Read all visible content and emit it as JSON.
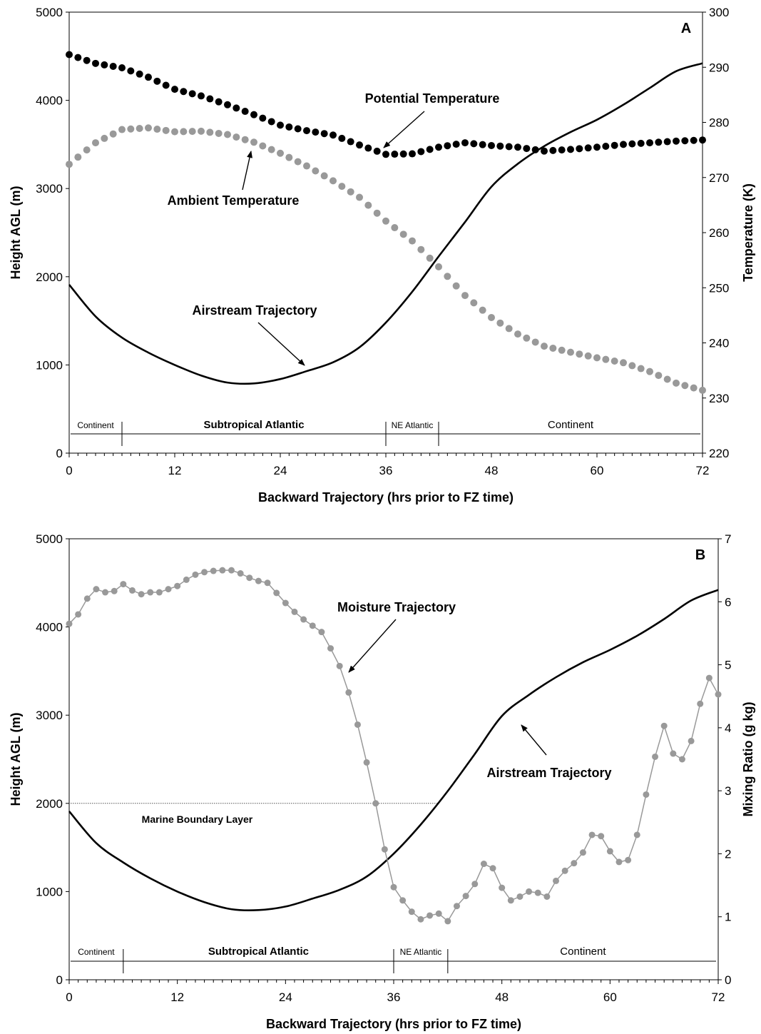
{
  "chart_data": [
    {
      "type": "line",
      "panel_label": "A",
      "xlabel": "Backward Trajectory (hrs prior to FZ time)",
      "ylabel": "Height AGL (m)",
      "y2label": "Temperature (K)",
      "xlim": [
        0,
        72
      ],
      "ylim": [
        0,
        5000
      ],
      "y2lim": [
        220,
        300
      ],
      "xticks": [
        "0",
        "12",
        "24",
        "36",
        "48",
        "60",
        "72"
      ],
      "yticks": [
        "0",
        "1000",
        "2000",
        "3000",
        "4000",
        "5000"
      ],
      "y2ticks": [
        "220",
        "230",
        "240",
        "250",
        "260",
        "270",
        "280",
        "290",
        "300"
      ],
      "series": [
        {
          "name": "Airstream Trajectory",
          "axis": "left",
          "style": "line",
          "x": [
            0,
            3,
            6,
            9,
            12,
            15,
            18,
            21,
            24,
            27,
            30,
            33,
            36,
            39,
            42,
            45,
            48,
            51,
            54,
            57,
            60,
            63,
            66,
            69,
            72
          ],
          "y": [
            1910,
            1550,
            1310,
            1140,
            1000,
            880,
            800,
            790,
            840,
            930,
            1030,
            1200,
            1480,
            1830,
            2230,
            2620,
            3020,
            3280,
            3480,
            3640,
            3780,
            3950,
            4140,
            4330,
            4420
          ]
        },
        {
          "name": "Potential Temperature",
          "axis": "right",
          "style": "dots",
          "color": "#000000",
          "x": [
            0,
            3,
            6,
            9,
            12,
            15,
            18,
            21,
            24,
            27,
            30,
            33,
            36,
            39,
            42,
            45,
            48,
            51,
            54,
            57,
            60,
            63,
            66,
            69,
            72
          ],
          "y": [
            292.3,
            290.7,
            289.9,
            288.2,
            286.0,
            284.8,
            283.2,
            281.4,
            279.5,
            278.5,
            277.7,
            275.9,
            274.2,
            274.3,
            275.5,
            276.3,
            275.8,
            275.5,
            274.8,
            275.1,
            275.5,
            276.0,
            276.3,
            276.6,
            276.8
          ]
        },
        {
          "name": "Ambient Temperature",
          "axis": "right",
          "style": "dots",
          "color": "#999999",
          "x": [
            0,
            3,
            6,
            9,
            12,
            15,
            18,
            21,
            24,
            27,
            30,
            33,
            36,
            39,
            42,
            45,
            48,
            51,
            54,
            57,
            60,
            63,
            66,
            69,
            72
          ],
          "y": [
            272.4,
            276.3,
            278.7,
            279.0,
            278.3,
            278.4,
            277.8,
            276.4,
            274.4,
            272.1,
            269.4,
            266.4,
            262.1,
            258.5,
            253.8,
            248.6,
            244.6,
            241.6,
            239.4,
            238.3,
            237.3,
            236.4,
            234.8,
            232.7,
            231.4
          ]
        }
      ],
      "annotations": [
        "Potential Temperature",
        "Ambient Temperature",
        "Airstream Trajectory"
      ],
      "regions": [
        {
          "label": "Continent",
          "from": 0,
          "to": 6,
          "bold": false,
          "small": true
        },
        {
          "label": "Subtropical Atlantic",
          "from": 6,
          "to": 36,
          "bold": true,
          "small": false
        },
        {
          "label": "NE Atlantic",
          "from": 36,
          "to": 42,
          "bold": false,
          "small": true
        },
        {
          "label": "Continent",
          "from": 42,
          "to": 72,
          "bold": false,
          "small": false
        }
      ]
    },
    {
      "type": "line",
      "panel_label": "B",
      "xlabel": "Backward Trajectory (hrs prior to FZ time)",
      "ylabel": "Height AGL (m)",
      "y2label": "Mixing Ratio (g kg)",
      "xlim": [
        0,
        72
      ],
      "ylim": [
        0,
        5000
      ],
      "y2lim": [
        0,
        7
      ],
      "xticks": [
        "0",
        "12",
        "24",
        "36",
        "48",
        "60",
        "72"
      ],
      "yticks": [
        "0",
        "1000",
        "2000",
        "3000",
        "4000",
        "5000"
      ],
      "y2ticks": [
        "0",
        "1",
        "2",
        "3",
        "4",
        "5",
        "6",
        "7"
      ],
      "series": [
        {
          "name": "Airstream Trajectory",
          "axis": "left",
          "style": "line",
          "x": [
            0,
            3,
            6,
            9,
            12,
            15,
            18,
            21,
            24,
            27,
            30,
            33,
            36,
            39,
            42,
            45,
            48,
            51,
            54,
            57,
            60,
            63,
            66,
            69,
            72
          ],
          "y": [
            1910,
            1550,
            1330,
            1150,
            1000,
            880,
            800,
            790,
            830,
            920,
            1020,
            1170,
            1430,
            1760,
            2140,
            2560,
            2990,
            3230,
            3430,
            3600,
            3740,
            3900,
            4090,
            4300,
            4420
          ]
        },
        {
          "name": "Moisture Trajectory",
          "axis": "right",
          "style": "line-markers",
          "color": "#999999",
          "x": [
            0,
            1,
            2,
            3,
            4,
            5,
            6,
            7,
            8,
            9,
            10,
            11,
            12,
            13,
            14,
            15,
            16,
            17,
            18,
            19,
            20,
            21,
            22,
            23,
            24,
            25,
            26,
            27,
            28,
            29,
            30,
            31,
            32,
            33,
            34,
            35,
            36,
            37,
            38,
            39,
            40,
            41,
            42,
            43,
            44,
            45,
            46,
            47,
            48,
            49,
            50,
            51,
            52,
            53,
            54,
            55,
            56,
            57,
            58,
            59,
            60,
            61,
            62,
            63,
            64,
            65,
            66,
            67,
            68,
            69,
            70,
            71,
            72
          ],
          "y": [
            5.65,
            5.8,
            6.05,
            6.2,
            6.15,
            6.17,
            6.28,
            6.18,
            6.12,
            6.15,
            6.15,
            6.2,
            6.25,
            6.35,
            6.43,
            6.47,
            6.49,
            6.5,
            6.5,
            6.45,
            6.38,
            6.33,
            6.3,
            6.14,
            5.98,
            5.84,
            5.72,
            5.62,
            5.52,
            5.26,
            4.98,
            4.56,
            4.05,
            3.45,
            2.8,
            2.07,
            1.47,
            1.26,
            1.08,
            0.96,
            1.02,
            1.05,
            0.93,
            1.17,
            1.33,
            1.52,
            1.84,
            1.77,
            1.46,
            1.26,
            1.32,
            1.4,
            1.38,
            1.32,
            1.57,
            1.73,
            1.85,
            2.02,
            2.3,
            2.28,
            2.04,
            1.87,
            1.9,
            2.3,
            2.94,
            3.54,
            4.03,
            3.59,
            3.5,
            3.79,
            4.38,
            4.79,
            4.53
          ]
        }
      ],
      "annotations": [
        "Moisture Trajectory",
        "Airstream Trajectory",
        "Marine Boundary Layer"
      ],
      "boundary_layer": {
        "label": "Marine Boundary Layer",
        "y": 2000,
        "x_to": 41
      },
      "regions": [
        {
          "label": "Continent",
          "from": 0,
          "to": 6,
          "bold": false,
          "small": true
        },
        {
          "label": "Subtropical Atlantic",
          "from": 6,
          "to": 36,
          "bold": true,
          "small": false
        },
        {
          "label": "NE Atlantic",
          "from": 36,
          "to": 42,
          "bold": false,
          "small": true
        },
        {
          "label": "Continent",
          "from": 42,
          "to": 72,
          "bold": false,
          "small": false
        }
      ]
    }
  ]
}
